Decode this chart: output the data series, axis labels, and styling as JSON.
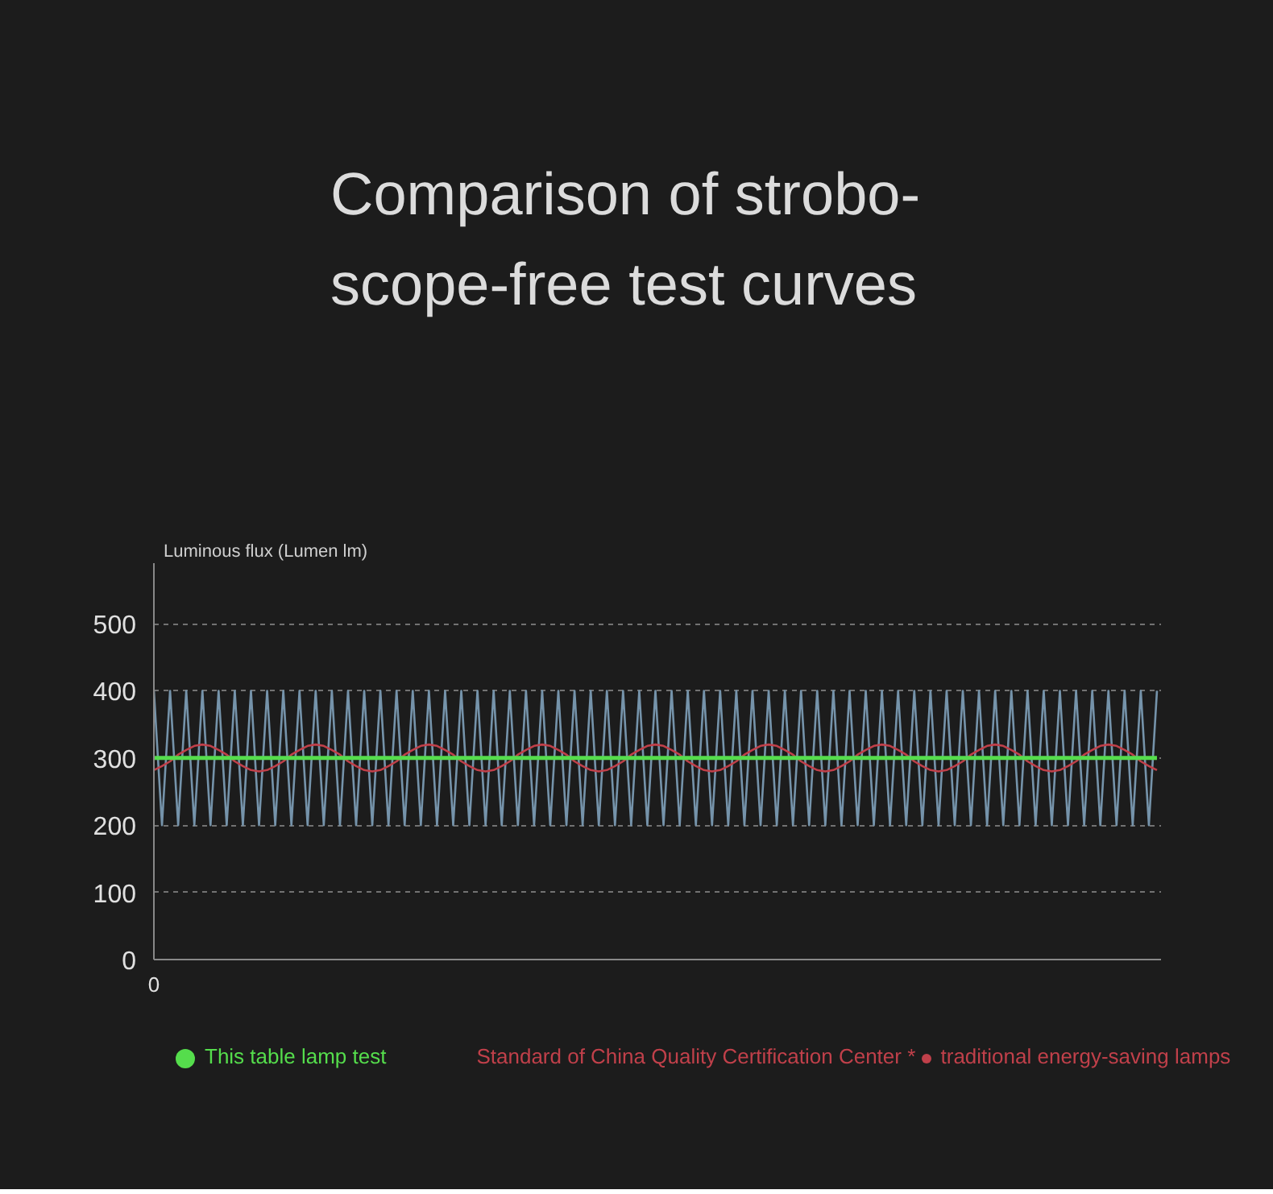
{
  "chart_data": {
    "type": "line",
    "title": "Comparison of strobo-\nscope-free test curves",
    "ylabel": "Luminous flux (Lumen lm)",
    "categories": [
      null,
      null,
      null,
      null,
      null,
      null,
      null,
      null,
      null,
      null,
      null,
      null,
      null,
      null,
      null,
      null,
      null,
      null,
      null,
      null,
      null,
      null,
      null,
      null,
      null,
      null,
      null,
      null,
      null,
      null,
      null,
      null,
      null,
      null,
      null,
      null,
      null,
      null,
      null,
      null,
      null,
      null,
      null,
      null,
      null,
      null,
      null,
      null,
      null,
      null,
      null,
      null,
      null,
      null,
      null,
      null,
      null,
      null,
      null,
      null,
      null,
      null,
      null,
      null,
      null,
      null,
      null,
      null,
      null,
      null,
      null,
      null,
      null,
      null,
      null,
      null,
      null,
      null,
      null,
      null,
      null,
      null,
      null,
      null,
      null,
      null,
      null,
      null,
      null,
      null,
      null,
      null,
      null,
      null,
      null,
      null,
      null,
      null,
      null,
      null,
      null,
      null,
      null,
      null,
      null,
      null,
      null,
      null,
      null,
      null,
      null,
      null,
      null,
      null,
      null,
      null,
      null,
      null,
      null,
      null,
      null,
      null,
      null,
      null,
      null
    ],
    "series": [
      {
        "color": "#7593aa",
        "values": [
          400,
          200,
          400,
          200,
          400,
          200,
          400,
          200,
          400,
          200,
          400,
          200,
          400,
          200,
          400,
          200,
          400,
          200,
          400,
          200,
          400,
          200,
          400,
          200,
          400,
          200,
          400,
          200,
          400,
          200,
          400,
          200,
          400,
          200,
          400,
          200,
          400,
          200,
          400,
          200,
          400,
          200,
          400,
          200,
          400,
          200,
          400,
          200,
          400,
          200,
          400,
          200,
          400,
          200,
          400,
          200,
          400,
          200,
          400,
          200,
          400,
          200,
          400,
          200,
          400,
          200,
          400,
          200,
          400,
          200,
          400,
          200,
          400,
          200,
          400,
          200,
          400,
          200,
          400,
          200,
          400,
          200,
          400,
          200,
          400,
          200,
          400,
          200,
          400,
          200,
          400,
          200,
          400,
          200,
          400,
          200,
          400,
          200,
          400,
          200,
          400,
          200,
          400,
          200,
          400,
          200,
          400,
          200,
          400,
          200,
          400,
          200,
          400,
          200,
          400,
          200,
          400,
          200,
          400,
          200,
          400,
          200,
          400,
          200,
          400
        ]
      },
      {
        "name": "traditional energy-saving lamps",
        "color": "#c0404a",
        "values": [
          282,
          288,
          295,
          305,
          312,
          318,
          320,
          318,
          312,
          305,
          295,
          288,
          282,
          280,
          282,
          288,
          295,
          305,
          312,
          318,
          320,
          318,
          312,
          305,
          295,
          288,
          282,
          280,
          282,
          288,
          295,
          305,
          312,
          318,
          320,
          318,
          312,
          305,
          295,
          288,
          282,
          280,
          282,
          288,
          295,
          305,
          312,
          318,
          320,
          318,
          312,
          305,
          295,
          288,
          282,
          280,
          282,
          288,
          295,
          305,
          312,
          318,
          320,
          318,
          312,
          305,
          295,
          288,
          282,
          280,
          282,
          288,
          295,
          305,
          312,
          318,
          320,
          318,
          312,
          305,
          295,
          288,
          282,
          280,
          282,
          288,
          295,
          305,
          312,
          318,
          320,
          318,
          312,
          305,
          295,
          288,
          282,
          280,
          282,
          288,
          295,
          305,
          312,
          318,
          320,
          318,
          312,
          305,
          295,
          288,
          282,
          280,
          282,
          288,
          295,
          305,
          312,
          318,
          320,
          318,
          312,
          305,
          295,
          288,
          282
        ]
      },
      {
        "name": "This table lamp test",
        "color": "#55dd4c",
        "values": [
          300,
          300,
          300,
          300,
          300,
          300,
          300,
          300,
          300,
          300,
          300,
          300,
          300,
          300,
          300,
          300,
          300,
          300,
          300,
          300,
          300,
          300,
          300,
          300,
          300,
          300,
          300,
          300,
          300,
          300,
          300,
          300,
          300,
          300,
          300,
          300,
          300,
          300,
          300,
          300,
          300,
          300,
          300,
          300,
          300,
          300,
          300,
          300,
          300,
          300,
          300,
          300,
          300,
          300,
          300,
          300,
          300,
          300,
          300,
          300,
          300,
          300,
          300,
          300,
          300,
          300,
          300,
          300,
          300,
          300,
          300,
          300,
          300,
          300,
          300,
          300,
          300,
          300,
          300,
          300,
          300,
          300,
          300,
          300,
          300,
          300,
          300,
          300,
          300,
          300,
          300,
          300,
          300,
          300,
          300,
          300,
          300,
          300,
          300,
          300,
          300,
          300,
          300,
          300,
          300,
          300,
          300,
          300,
          300,
          300,
          300,
          300,
          300,
          300,
          300,
          300,
          300,
          300,
          300,
          300,
          300,
          300,
          300,
          300,
          300
        ]
      }
    ],
    "ylim": [
      0,
      590
    ],
    "yticks": [
      0,
      100,
      200,
      300,
      400,
      500
    ],
    "grid": "y",
    "legend": "bottom",
    "marker": "none",
    "line_style": "solid",
    "annotations": [
      "0",
      "Standard of China Quality Certification Center *"
    ]
  }
}
